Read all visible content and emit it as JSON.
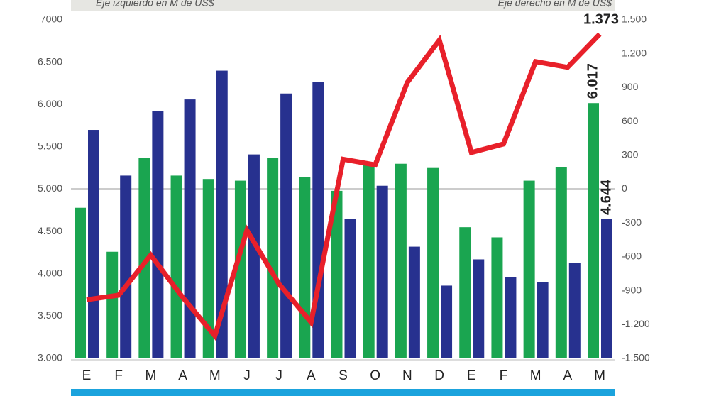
{
  "chart_data": {
    "type": "bar_line",
    "y_label": "Eje izquierdo en M de US$",
    "y2_label": "Eje derecho en M de US$",
    "categories": [
      "E",
      "F",
      "M",
      "A",
      "M",
      "J",
      "J",
      "A",
      "S",
      "O",
      "N",
      "D",
      "E",
      "F",
      "M",
      "A",
      "M"
    ],
    "series": [
      {
        "type": "bar",
        "color": "#1aa550",
        "axis": "y",
        "values": [
          4780,
          4260,
          5370,
          5160,
          5120,
          5100,
          5370,
          5140,
          4980,
          5290,
          5300,
          5250,
          4550,
          4430,
          5100,
          5260,
          6017
        ],
        "value_labels": [
          null,
          null,
          null,
          null,
          null,
          null,
          null,
          null,
          null,
          null,
          null,
          null,
          null,
          null,
          null,
          null,
          "6.017"
        ]
      },
      {
        "type": "bar",
        "color": "#27318f",
        "axis": "y",
        "values": [
          5700,
          5160,
          5920,
          6060,
          6400,
          5410,
          6130,
          6270,
          4650,
          5040,
          4320,
          3860,
          4170,
          3960,
          3900,
          4130,
          4644
        ],
        "value_labels": [
          null,
          null,
          null,
          null,
          null,
          null,
          null,
          null,
          null,
          null,
          null,
          null,
          null,
          null,
          null,
          null,
          "4.644"
        ]
      },
      {
        "type": "line",
        "color": "#e8202a",
        "axis": "y2",
        "values": [
          -980,
          -940,
          -585,
          -960,
          -1300,
          -365,
          -840,
          -1180,
          265,
          215,
          945,
          1320,
          325,
          400,
          1130,
          1080,
          1373
        ],
        "value_labels": [
          null,
          null,
          null,
          null,
          null,
          null,
          null,
          null,
          null,
          null,
          null,
          null,
          null,
          null,
          null,
          null,
          "1.373"
        ]
      }
    ],
    "ylim": [
      3000,
      7000
    ],
    "yticks": [
      {
        "value": 3000,
        "label": "3.000"
      },
      {
        "value": 3500,
        "label": "3.500"
      },
      {
        "value": 4000,
        "label": "4.000"
      },
      {
        "value": 4500,
        "label": "4.500"
      },
      {
        "value": 5000,
        "label": "5.000"
      },
      {
        "value": 5500,
        "label": "5.500"
      },
      {
        "value": 6000,
        "label": "6.000"
      },
      {
        "value": 6500,
        "label": "6.500"
      },
      7000
    ],
    "y2lim": [
      -1500,
      1500
    ],
    "y2ticks": [
      {
        "value": 1500,
        "label": "1.500"
      },
      {
        "value": 1200,
        "label": "1.200"
      },
      900,
      600,
      300,
      0,
      -300,
      -600,
      -900,
      {
        "value": -1200,
        "label": "-1.200"
      },
      {
        "value": -1500,
        "label": "-1.500"
      }
    ],
    "grid": false
  }
}
